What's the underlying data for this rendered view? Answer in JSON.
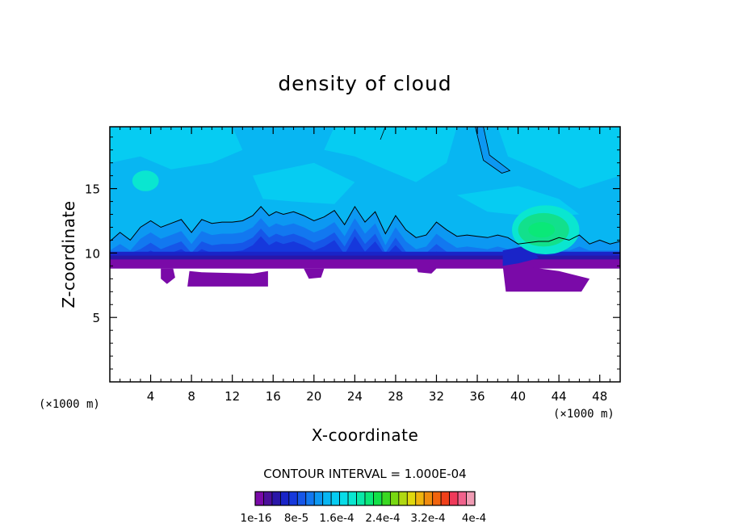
{
  "chart_data": {
    "type": "heatmap",
    "title": "density of cloud",
    "xlabel": "X-coordinate",
    "ylabel": "Z-coordinate",
    "x_unit_left": "(×1000 m)",
    "x_unit_right": "(×1000 m)",
    "xlim": [
      0,
      50
    ],
    "ylim": [
      0,
      19.8
    ],
    "x_ticks": [
      4,
      8,
      12,
      16,
      20,
      24,
      28,
      32,
      36,
      40,
      44,
      48
    ],
    "x_tick_labels": [
      "4",
      "8",
      "12",
      "16",
      "20",
      "24",
      "28",
      "32",
      "36",
      "40",
      "44",
      "48"
    ],
    "y_ticks": [
      5,
      10,
      15
    ],
    "y_tick_labels": [
      "5",
      "10",
      "15"
    ],
    "contour_interval_text": "CONTOUR INTERVAL = 1.000E-04",
    "colorbar": {
      "colors": [
        "#7a0aa8",
        "#4b0f9a",
        "#2a16a8",
        "#1a24c8",
        "#1638dc",
        "#1656e8",
        "#1278f0",
        "#0c98f2",
        "#08b6f2",
        "#06ccf2",
        "#08dce8",
        "#0ae6d0",
        "#0ae8a8",
        "#0ae878",
        "#12e048",
        "#3ad822",
        "#78d812",
        "#b0d812",
        "#e0d80e",
        "#f0b40e",
        "#f08c0e",
        "#f0640e",
        "#f0401a",
        "#f03a5a",
        "#f0628c",
        "#f09cb4"
      ],
      "labels": [
        "1e-16",
        "8e-5",
        "1.6e-4",
        "2.4e-4",
        "3.2e-4",
        "4e-4"
      ]
    },
    "regions": [
      {
        "level": "background",
        "color": "#08b6f2",
        "note": "upper layer ~12-19.8 km"
      },
      {
        "level": "cyan-light",
        "color": "#06ccf2"
      },
      {
        "level": "blue-mid",
        "color": "#1656e8",
        "z_range": [
          9.5,
          12.5
        ]
      },
      {
        "level": "purple-base",
        "color": "#7a0aa8",
        "z_range": [
          7.2,
          9.8
        ]
      },
      {
        "level": "green-patch",
        "color": "#12e08c",
        "x_range": [
          39.5,
          46
        ],
        "z_range": [
          10.8,
          12.8
        ]
      }
    ],
    "cloud_top_contour": [
      [
        0,
        10.9
      ],
      [
        1,
        11.6
      ],
      [
        2,
        11.0
      ],
      [
        3,
        12.0
      ],
      [
        4,
        12.5
      ],
      [
        5,
        12.0
      ],
      [
        6,
        12.3
      ],
      [
        7,
        12.6
      ],
      [
        8,
        11.6
      ],
      [
        9,
        12.6
      ],
      [
        10,
        12.3
      ],
      [
        11,
        12.4
      ],
      [
        12,
        12.4
      ],
      [
        13,
        12.5
      ],
      [
        14,
        12.9
      ],
      [
        14.8,
        13.6
      ],
      [
        15.6,
        12.9
      ],
      [
        16.3,
        13.2
      ],
      [
        17,
        13.0
      ],
      [
        18,
        13.2
      ],
      [
        19,
        12.9
      ],
      [
        20,
        12.5
      ],
      [
        21,
        12.8
      ],
      [
        22,
        13.3
      ],
      [
        23,
        12.2
      ],
      [
        24,
        13.6
      ],
      [
        25,
        12.4
      ],
      [
        26,
        13.2
      ],
      [
        27,
        11.5
      ],
      [
        28,
        12.9
      ],
      [
        29,
        11.8
      ],
      [
        30,
        11.2
      ],
      [
        31,
        11.4
      ],
      [
        32,
        12.4
      ],
      [
        33,
        11.8
      ],
      [
        34,
        11.3
      ],
      [
        35,
        11.4
      ],
      [
        36,
        11.3
      ],
      [
        37,
        11.2
      ],
      [
        38,
        11.4
      ],
      [
        39,
        11.2
      ],
      [
        40,
        10.7
      ],
      [
        41,
        10.8
      ],
      [
        42,
        10.9
      ],
      [
        43,
        10.9
      ],
      [
        44,
        11.2
      ],
      [
        45,
        11.0
      ],
      [
        46,
        11.4
      ],
      [
        47,
        10.7
      ],
      [
        48,
        11.0
      ],
      [
        49,
        10.7
      ],
      [
        50,
        10.9
      ]
    ]
  }
}
